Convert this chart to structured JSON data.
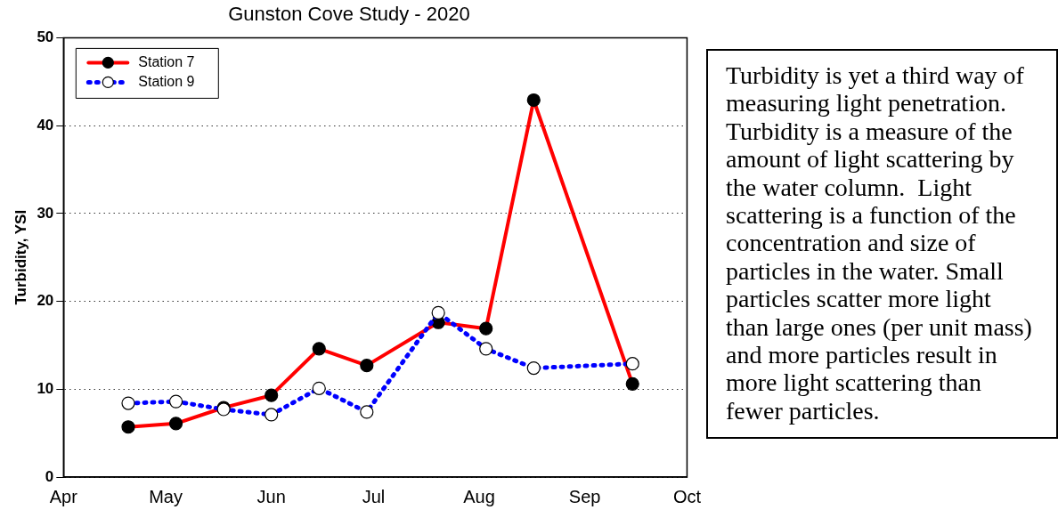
{
  "chart_data": {
    "type": "line",
    "title": "Gunston Cove Study - 2020",
    "ylabel": "Turbidity, YSI",
    "x": [
      "--04-20",
      "--05-04",
      "--05-18",
      "--06-01",
      "--06-15",
      "--06-29",
      "--07-20",
      "--08-03",
      "--08-17",
      "--09-15"
    ],
    "series": [
      {
        "name": "Station 7",
        "color": "#ff0000",
        "line_style": "solid",
        "values": [
          5.7,
          6.1,
          7.9,
          9.3,
          14.6,
          12.7,
          17.6,
          16.9,
          42.9,
          10.6
        ]
      },
      {
        "name": "Station 9",
        "color": "#0000ff",
        "line_style": "dotted",
        "values": [
          8.4,
          8.6,
          7.7,
          7.1,
          10.1,
          7.4,
          18.7,
          14.6,
          12.4,
          12.9
        ]
      }
    ],
    "xlim": [
      "--04-01",
      "--10-01"
    ],
    "xticks": [
      {
        "value": "--04-01",
        "label": "Apr"
      },
      {
        "value": "--05-01",
        "label": "May"
      },
      {
        "value": "--06-01",
        "label": "Jun"
      },
      {
        "value": "--07-01",
        "label": "Jul"
      },
      {
        "value": "--08-01",
        "label": "Aug"
      },
      {
        "value": "--09-01",
        "label": "Sep"
      },
      {
        "value": "--10-01",
        "label": "Oct"
      }
    ],
    "ylim": [
      0,
      50
    ],
    "yticks": [
      0,
      10,
      20,
      30,
      40,
      50
    ],
    "grid": "y",
    "legend": "top left",
    "marker": "circle",
    "annotations": [
      "Turbidity is yet a third way of measuring light penetration. Turbidity is a measure of the amount of light scattering by the water column.  Light scattering is a function of the concentration and size of particles in the water. Small particles scatter more light than large ones (per unit mass) and more particles result in more light scattering than fewer particles."
    ]
  }
}
